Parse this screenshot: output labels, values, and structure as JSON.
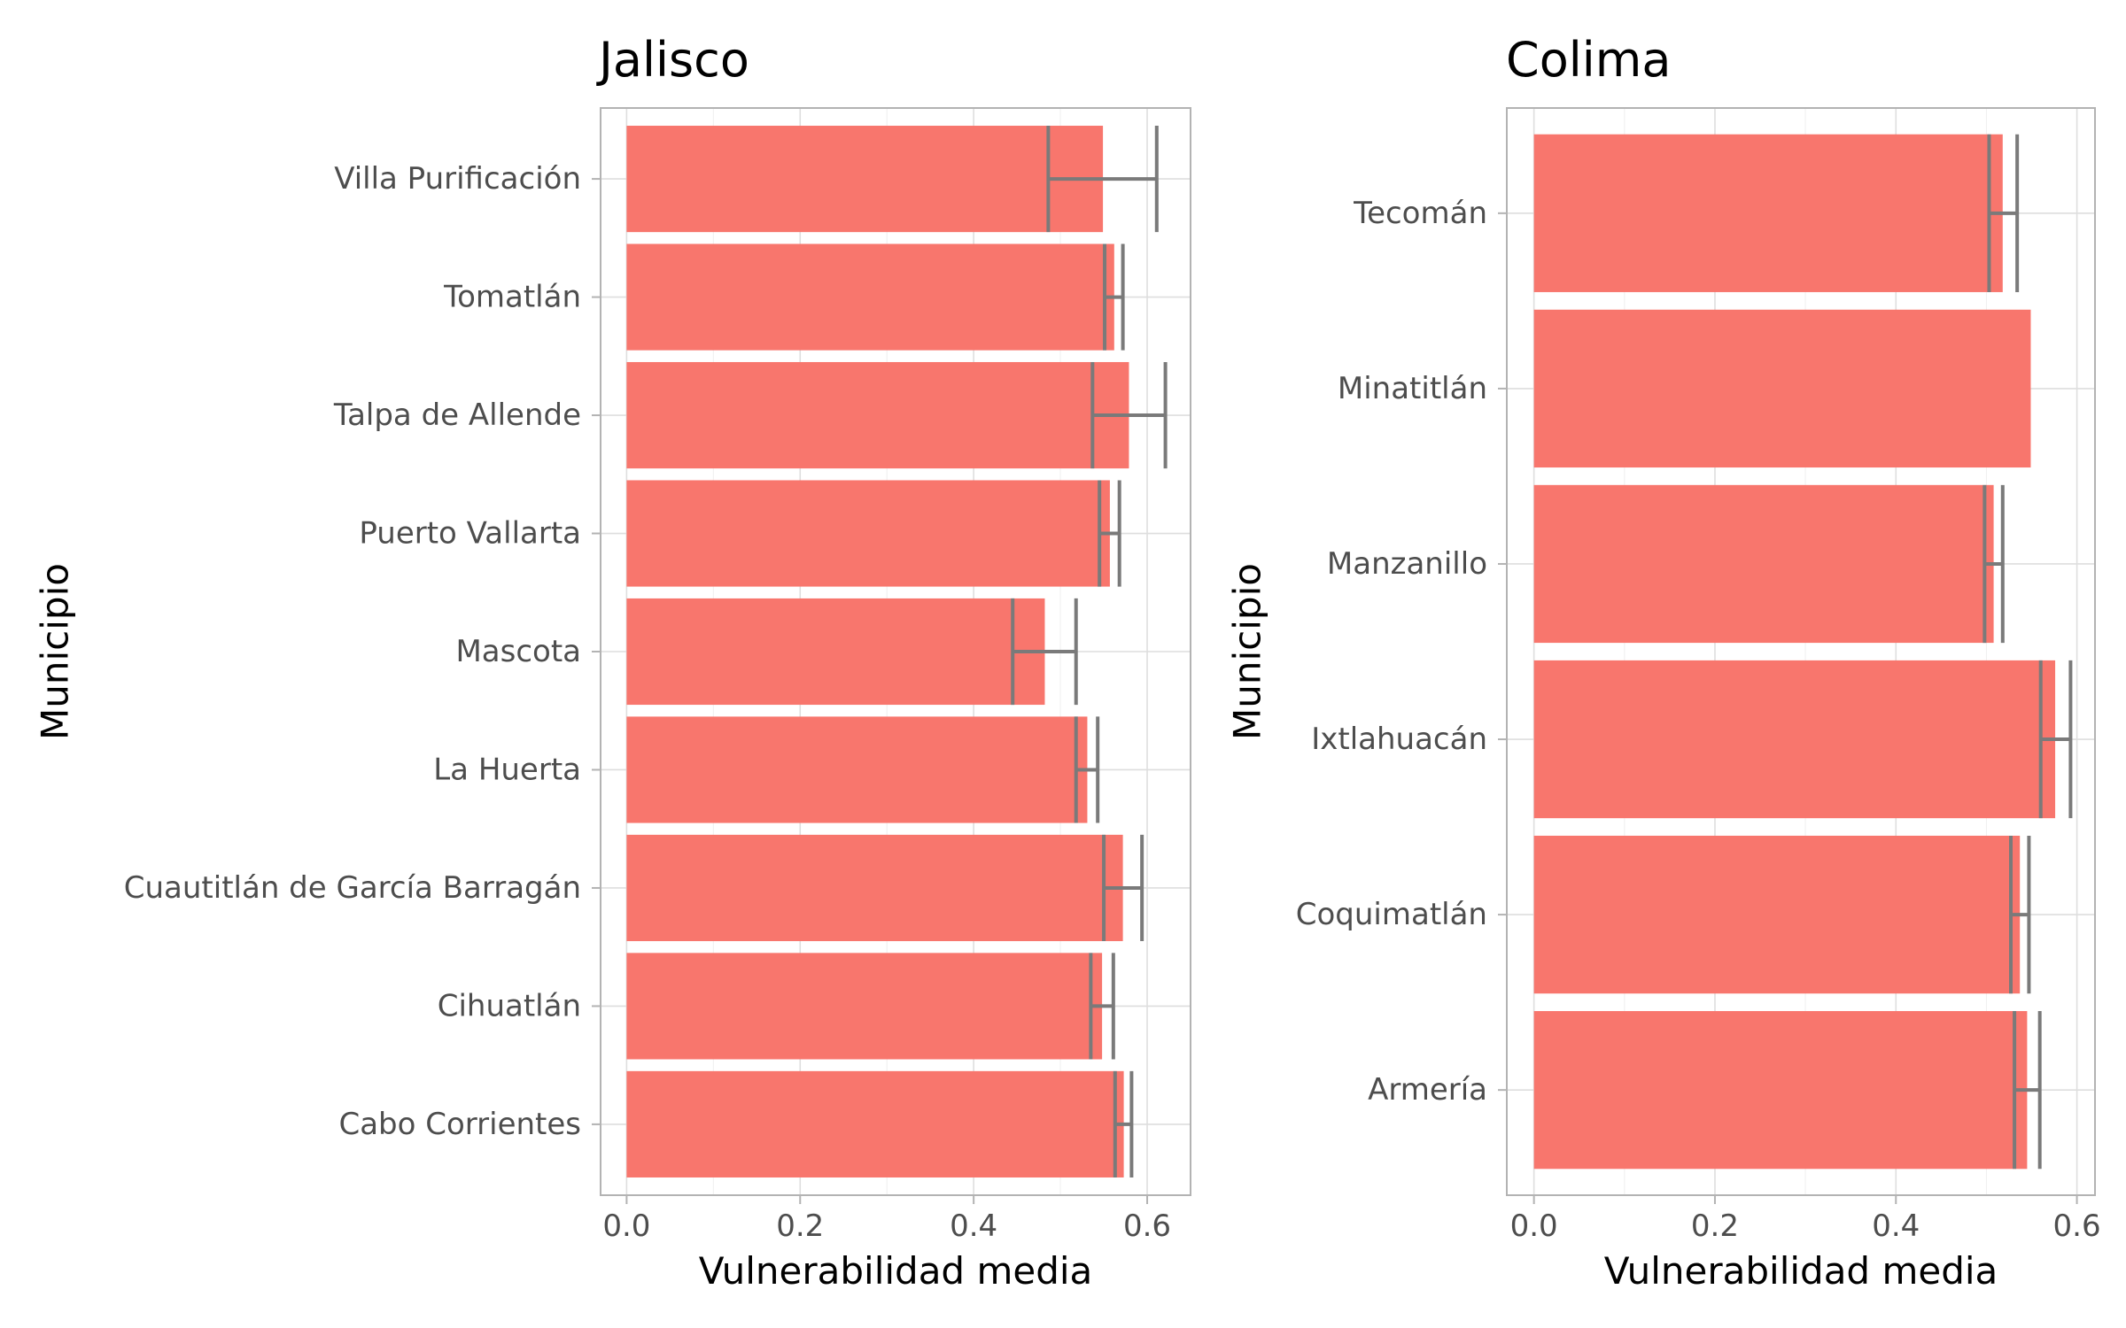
{
  "bar_color": "#f8766d",
  "error_color": "#7a7a7a",
  "chart_data": [
    {
      "type": "bar",
      "orientation": "horizontal",
      "title": "Jalisco",
      "xlabel": "Vulnerabilidad media",
      "ylabel": "Municipio",
      "xlim": [
        -0.03,
        0.65
      ],
      "xticks": [
        0.0,
        0.2,
        0.4,
        0.6
      ],
      "xtick_labels": [
        "0.0",
        "0.2",
        "0.4",
        "0.6"
      ],
      "grid": true,
      "categories": [
        "Villa Purificación",
        "Tomatlán",
        "Talpa de Allende",
        "Puerto Vallarta",
        "Mascota",
        "La Huerta",
        "Cuautitlán de García Barragán",
        "Cihuatlán",
        "Cabo Corrientes"
      ],
      "values": [
        0.549,
        0.562,
        0.579,
        0.557,
        0.482,
        0.531,
        0.572,
        0.548,
        0.573
      ],
      "error_low": [
        0.486,
        0.551,
        0.537,
        0.545,
        0.445,
        0.518,
        0.55,
        0.535,
        0.563
      ],
      "error_high": [
        0.611,
        0.572,
        0.621,
        0.568,
        0.518,
        0.543,
        0.594,
        0.561,
        0.582
      ]
    },
    {
      "type": "bar",
      "orientation": "horizontal",
      "title": "Colima",
      "xlabel": "Vulnerabilidad media",
      "ylabel": "Municipio",
      "xlim": [
        -0.03,
        0.62
      ],
      "xticks": [
        0.0,
        0.2,
        0.4,
        0.6
      ],
      "xtick_labels": [
        "0.0",
        "0.2",
        "0.4",
        "0.6"
      ],
      "grid": true,
      "categories": [
        "Tecomán",
        "Minatitlán",
        "Manzanillo",
        "Ixtlahuacán",
        "Coquimatlán",
        "Armería"
      ],
      "values": [
        0.518,
        0.549,
        0.508,
        0.576,
        0.537,
        0.545
      ],
      "error_low": [
        0.503,
        null,
        0.498,
        0.56,
        0.527,
        0.531
      ],
      "error_high": [
        0.534,
        null,
        0.518,
        0.593,
        0.547,
        0.559
      ]
    }
  ]
}
